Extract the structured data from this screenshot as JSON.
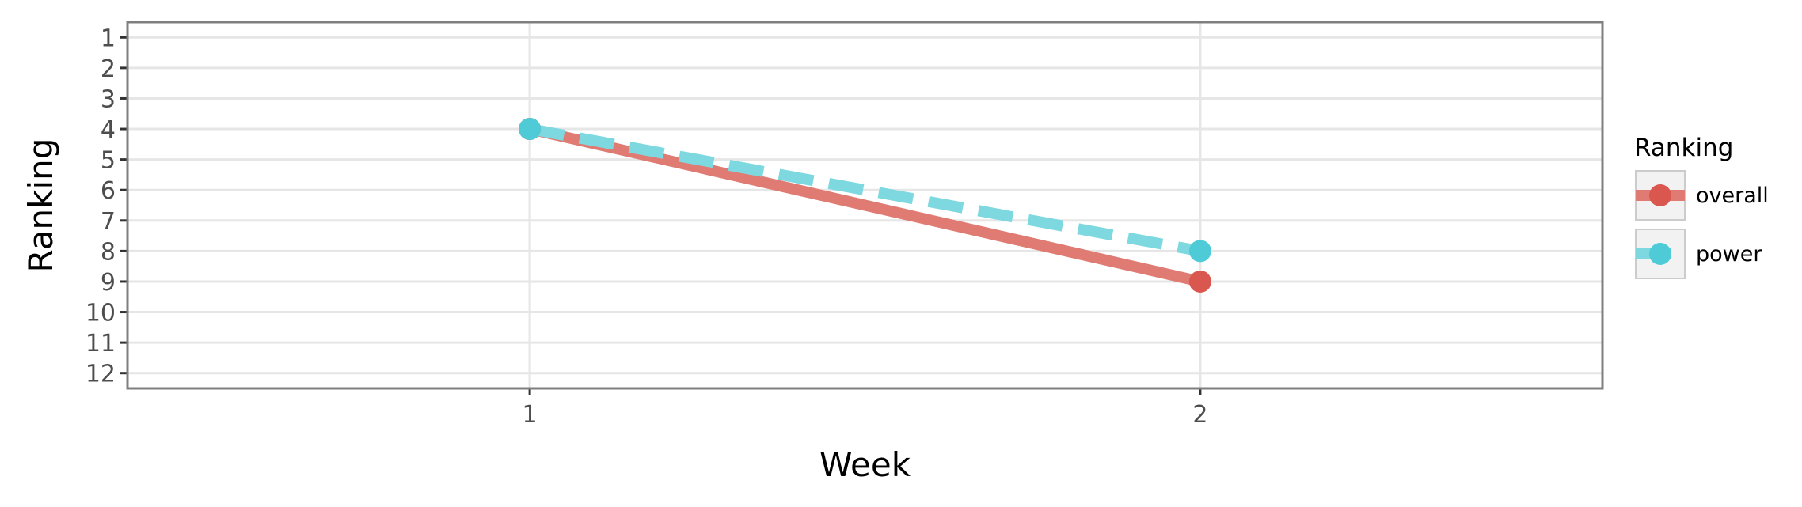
{
  "chart_data": {
    "type": "line",
    "xlabel": "Week",
    "ylabel": "Ranking",
    "x": [
      1,
      2
    ],
    "xlim": [
      0.4,
      2.6
    ],
    "ylim": [
      12.5,
      0.5
    ],
    "y_reversed": true,
    "x_ticks": [
      "1",
      "2"
    ],
    "y_ticks": [
      "1",
      "2",
      "3",
      "4",
      "5",
      "6",
      "7",
      "8",
      "9",
      "10",
      "11",
      "12"
    ],
    "grid": true,
    "legend": {
      "title": "Ranking",
      "position": "right"
    },
    "series": [
      {
        "name": "overall",
        "values": [
          4,
          9
        ],
        "color": "#e07b73",
        "point_color": "#d9574e",
        "line_style": "solid"
      },
      {
        "name": "power",
        "values": [
          4,
          8
        ],
        "color": "#7dd9df",
        "point_color": "#4ecbd6",
        "line_style": "dashed"
      }
    ]
  }
}
